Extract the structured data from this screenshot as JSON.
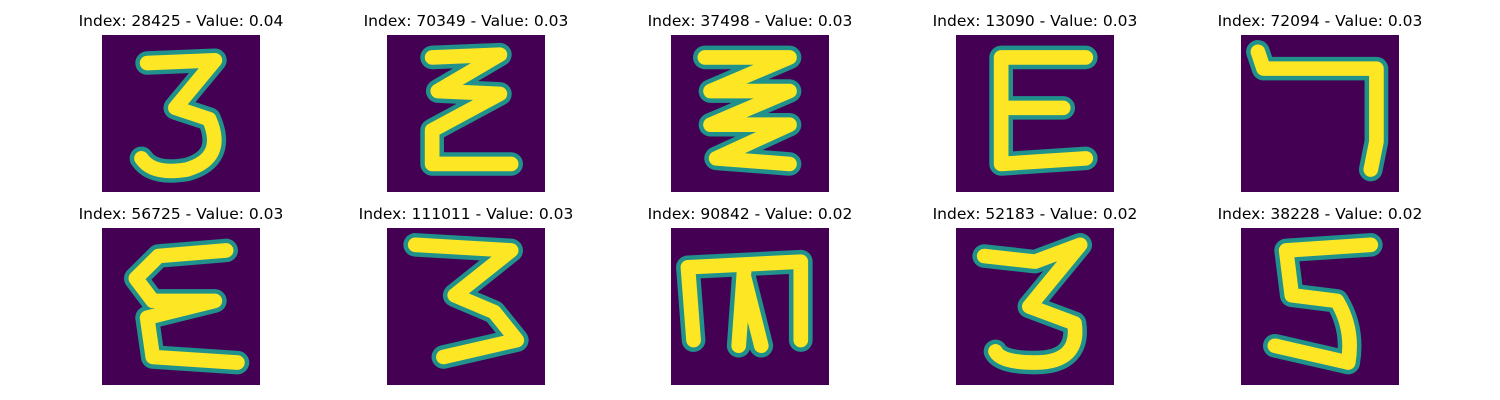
{
  "style": {
    "background_color": "#440154",
    "stroke_core_color": "#fde725",
    "stroke_edge_color": "#35b779",
    "stroke_mid_color": "#21918c"
  },
  "images": [
    {
      "title": "Index: 28425 - Value: 0.04",
      "index": 28425,
      "value": 0.04,
      "glyph": "digit-3-icon"
    },
    {
      "title": "Index: 70349 - Value: 0.03",
      "index": 70349,
      "value": 0.03,
      "glyph": "epsilon-icon"
    },
    {
      "title": "Index: 37498 - Value: 0.03",
      "index": 37498,
      "value": 0.03,
      "glyph": "zigzag-epsilon-icon"
    },
    {
      "title": "Index: 13090 - Value: 0.03",
      "index": 13090,
      "value": 0.03,
      "glyph": "letter-e-icon"
    },
    {
      "title": "Index: 72094 - Value: 0.03",
      "index": 72094,
      "value": 0.03,
      "glyph": "digit-7-icon"
    },
    {
      "title": "Index: 56725 - Value: 0.03",
      "index": 56725,
      "value": 0.03,
      "glyph": "epsilon-icon"
    },
    {
      "title": "Index: 111011 - Value: 0.03",
      "index": 111011,
      "value": 0.03,
      "glyph": "digit-3-icon"
    },
    {
      "title": "Index: 90842 - Value: 0.02",
      "index": 90842,
      "value": 0.02,
      "glyph": "letter-m-icon"
    },
    {
      "title": "Index: 52183 - Value: 0.02",
      "index": 52183,
      "value": 0.02,
      "glyph": "digit-3-icon"
    },
    {
      "title": "Index: 38228 - Value: 0.02",
      "index": 38228,
      "value": 0.02,
      "glyph": "digit-5-icon"
    }
  ]
}
